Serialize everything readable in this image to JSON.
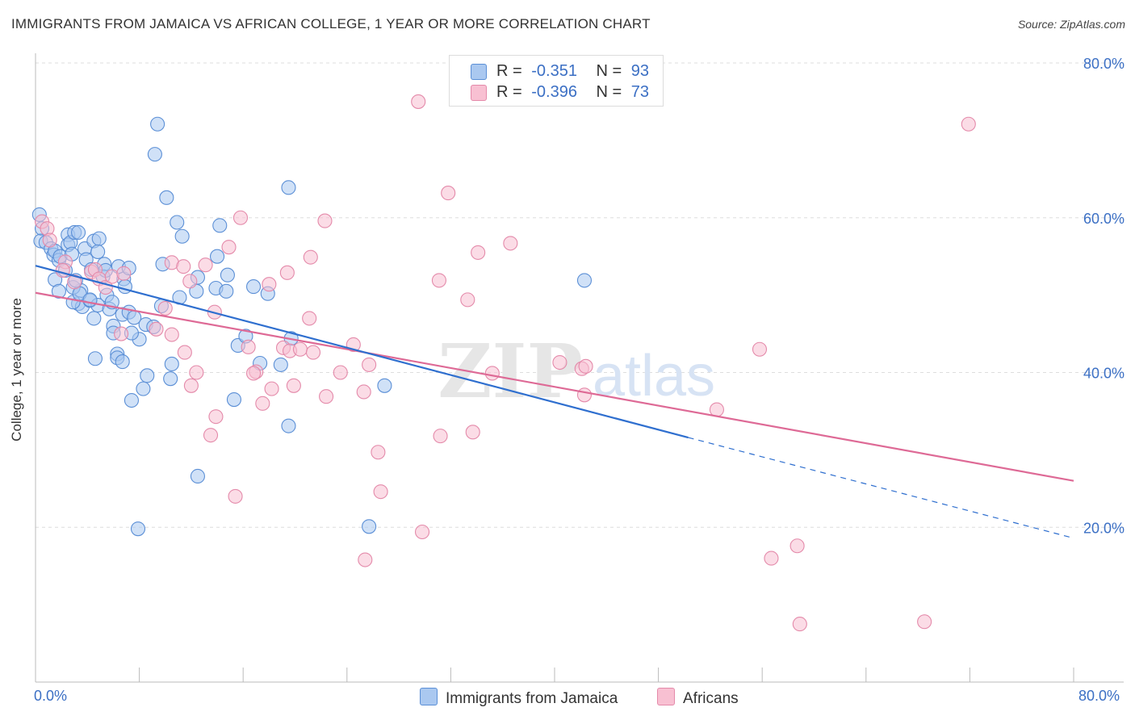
{
  "title": "IMMIGRANTS FROM JAMAICA VS AFRICAN COLLEGE, 1 YEAR OR MORE CORRELATION CHART",
  "source": "Source: ZipAtlas.com",
  "watermark": {
    "zip": "ZIP",
    "atlas": "atlas"
  },
  "legend": {
    "rows": [
      {
        "r_label": "R =",
        "r_value": "-0.351",
        "n_label": "N =",
        "n_value": "93"
      },
      {
        "r_label": "R =",
        "r_value": "-0.396",
        "n_label": "N =",
        "n_value": "73"
      }
    ]
  },
  "bottom_legend": [
    "Immigrants from Jamaica",
    "Africans"
  ],
  "colors": {
    "blue_fill": "#aac8f0",
    "blue_stroke": "#5b8fd6",
    "blue_line": "#2f6fcf",
    "pink_fill": "#f8c0d2",
    "pink_stroke": "#e48aaa",
    "pink_line": "#de6a96",
    "tick_text": "#3b6fc4",
    "grid": "#dddddd"
  },
  "chart_data": {
    "type": "scatter",
    "title": "IMMIGRANTS FROM JAMAICA VS AFRICAN COLLEGE, 1 YEAR OR MORE CORRELATION CHART",
    "xlabel": "",
    "ylabel": "College, 1 year or more",
    "xlim": [
      0,
      80
    ],
    "ylim": [
      0,
      80
    ],
    "x_tick_labels": [
      "0.0%",
      "80.0%"
    ],
    "y_ticks": [
      20,
      40,
      60,
      80
    ],
    "y_tick_labels": [
      "20.0%",
      "40.0%",
      "60.0%",
      "80.0%"
    ],
    "grid": true,
    "legend_position": "top-center",
    "series": [
      {
        "name": "Immigrants from Jamaica",
        "points": [
          [
            0.3,
            60.4
          ],
          [
            0.5,
            58.6
          ],
          [
            0.4,
            57.0
          ],
          [
            0.8,
            56.8
          ],
          [
            1.2,
            56.0
          ],
          [
            1.4,
            55.2
          ],
          [
            1.5,
            55.7
          ],
          [
            1.8,
            54.5
          ],
          [
            1.9,
            55.0
          ],
          [
            2.3,
            53.2
          ],
          [
            2.5,
            57.8
          ],
          [
            2.5,
            56.5
          ],
          [
            2.7,
            56.8
          ],
          [
            2.8,
            55.3
          ],
          [
            3.0,
            58.1
          ],
          [
            3.3,
            58.1
          ],
          [
            3.8,
            56.0
          ],
          [
            3.9,
            54.6
          ],
          [
            3.5,
            50.6
          ],
          [
            4.5,
            57.0
          ],
          [
            4.9,
            57.3
          ],
          [
            4.8,
            55.6
          ],
          [
            5.3,
            54.0
          ],
          [
            5.2,
            52.4
          ],
          [
            6.8,
            52.1
          ],
          [
            6.9,
            51.1
          ],
          [
            5.5,
            50.0
          ],
          [
            3.3,
            48.9
          ],
          [
            3.6,
            48.5
          ],
          [
            4.2,
            49.3
          ],
          [
            4.8,
            48.7
          ],
          [
            5.7,
            48.2
          ],
          [
            6.0,
            46.0
          ],
          [
            4.5,
            47.0
          ],
          [
            6.7,
            47.5
          ],
          [
            7.2,
            47.8
          ],
          [
            7.6,
            47.1
          ],
          [
            8.5,
            46.2
          ],
          [
            9.8,
            54.0
          ],
          [
            8.0,
            44.3
          ],
          [
            9.1,
            45.9
          ],
          [
            9.7,
            48.6
          ],
          [
            11.1,
            49.7
          ],
          [
            12.5,
            52.3
          ],
          [
            12.4,
            50.5
          ],
          [
            13.9,
            50.9
          ],
          [
            14.7,
            50.5
          ],
          [
            14.8,
            52.6
          ],
          [
            14.0,
            55.0
          ],
          [
            14.2,
            59.0
          ],
          [
            10.9,
            59.4
          ],
          [
            11.3,
            57.6
          ],
          [
            10.1,
            62.6
          ],
          [
            9.2,
            68.2
          ],
          [
            9.4,
            72.1
          ],
          [
            19.5,
            63.9
          ],
          [
            16.8,
            51.1
          ],
          [
            17.9,
            50.2
          ],
          [
            19.7,
            44.4
          ],
          [
            15.6,
            43.5
          ],
          [
            16.2,
            44.7
          ],
          [
            17.3,
            41.2
          ],
          [
            18.9,
            41.0
          ],
          [
            19.5,
            33.1
          ],
          [
            15.3,
            36.5
          ],
          [
            10.5,
            41.1
          ],
          [
            10.4,
            39.2
          ],
          [
            8.6,
            39.6
          ],
          [
            6.0,
            45.1
          ],
          [
            7.4,
            45.1
          ],
          [
            6.3,
            42.4
          ],
          [
            6.3,
            41.9
          ],
          [
            6.7,
            41.4
          ],
          [
            4.6,
            41.8
          ],
          [
            8.3,
            37.9
          ],
          [
            7.4,
            36.4
          ],
          [
            12.5,
            26.6
          ],
          [
            7.9,
            19.8
          ],
          [
            26.9,
            38.3
          ],
          [
            25.7,
            20.1
          ],
          [
            42.3,
            51.9
          ],
          [
            1.5,
            52.0
          ],
          [
            1.8,
            50.5
          ],
          [
            2.9,
            49.1
          ],
          [
            2.9,
            51.0
          ],
          [
            3.4,
            50.2
          ],
          [
            4.2,
            49.4
          ],
          [
            4.3,
            53.3
          ],
          [
            5.4,
            53.2
          ],
          [
            6.4,
            53.7
          ],
          [
            7.2,
            53.5
          ],
          [
            5.9,
            49.1
          ],
          [
            3.1,
            51.9
          ]
        ]
      },
      {
        "name": "Africans",
        "points": [
          [
            0.5,
            59.5
          ],
          [
            0.9,
            58.6
          ],
          [
            1.1,
            57.1
          ],
          [
            2.3,
            54.3
          ],
          [
            2.1,
            53.2
          ],
          [
            4.3,
            53.0
          ],
          [
            4.6,
            53.3
          ],
          [
            4.9,
            52.1
          ],
          [
            5.4,
            51.0
          ],
          [
            3.0,
            51.7
          ],
          [
            5.9,
            52.4
          ],
          [
            6.8,
            52.8
          ],
          [
            10.5,
            54.2
          ],
          [
            11.9,
            51.8
          ],
          [
            11.4,
            53.7
          ],
          [
            13.1,
            53.9
          ],
          [
            14.9,
            56.2
          ],
          [
            15.8,
            60.0
          ],
          [
            18.0,
            51.4
          ],
          [
            19.4,
            52.9
          ],
          [
            21.2,
            54.9
          ],
          [
            22.3,
            59.6
          ],
          [
            29.5,
            75.0
          ],
          [
            31.8,
            63.2
          ],
          [
            31.1,
            51.9
          ],
          [
            34.1,
            55.5
          ],
          [
            33.3,
            49.4
          ],
          [
            36.6,
            56.7
          ],
          [
            6.6,
            45.0
          ],
          [
            9.3,
            45.6
          ],
          [
            10.0,
            48.3
          ],
          [
            10.5,
            44.9
          ],
          [
            11.5,
            42.6
          ],
          [
            12.4,
            40.0
          ],
          [
            12.0,
            38.3
          ],
          [
            13.8,
            47.8
          ],
          [
            16.4,
            43.3
          ],
          [
            17.0,
            40.1
          ],
          [
            16.8,
            39.9
          ],
          [
            17.5,
            36.0
          ],
          [
            18.2,
            37.9
          ],
          [
            19.1,
            43.2
          ],
          [
            19.6,
            42.8
          ],
          [
            19.9,
            38.3
          ],
          [
            20.4,
            43.0
          ],
          [
            21.1,
            47.0
          ],
          [
            21.4,
            42.6
          ],
          [
            22.4,
            36.9
          ],
          [
            23.5,
            40.0
          ],
          [
            24.5,
            43.6
          ],
          [
            25.3,
            37.5
          ],
          [
            25.7,
            41.0
          ],
          [
            26.4,
            29.7
          ],
          [
            26.6,
            24.6
          ],
          [
            25.4,
            15.8
          ],
          [
            29.8,
            19.4
          ],
          [
            31.2,
            31.8
          ],
          [
            33.7,
            32.3
          ],
          [
            35.2,
            39.9
          ],
          [
            42.1,
            40.5
          ],
          [
            42.3,
            37.1
          ],
          [
            42.4,
            40.8
          ],
          [
            40.4,
            41.3
          ],
          [
            52.5,
            35.2
          ],
          [
            55.8,
            43.0
          ],
          [
            56.7,
            16.0
          ],
          [
            58.7,
            17.6
          ],
          [
            58.9,
            7.5
          ],
          [
            68.5,
            7.8
          ],
          [
            71.9,
            72.1
          ],
          [
            13.9,
            34.3
          ],
          [
            13.5,
            31.9
          ],
          [
            15.4,
            24.0
          ]
        ]
      }
    ],
    "trend_lines": [
      {
        "series": "Immigrants from Jamaica",
        "solid": [
          [
            0,
            53.8
          ],
          [
            50.3,
            31.6
          ]
        ],
        "dashed": [
          [
            50.3,
            31.6
          ],
          [
            80,
            18.6
          ]
        ]
      },
      {
        "series": "Africans",
        "solid": [
          [
            0,
            50.3
          ],
          [
            80,
            26.0
          ]
        ]
      }
    ]
  }
}
